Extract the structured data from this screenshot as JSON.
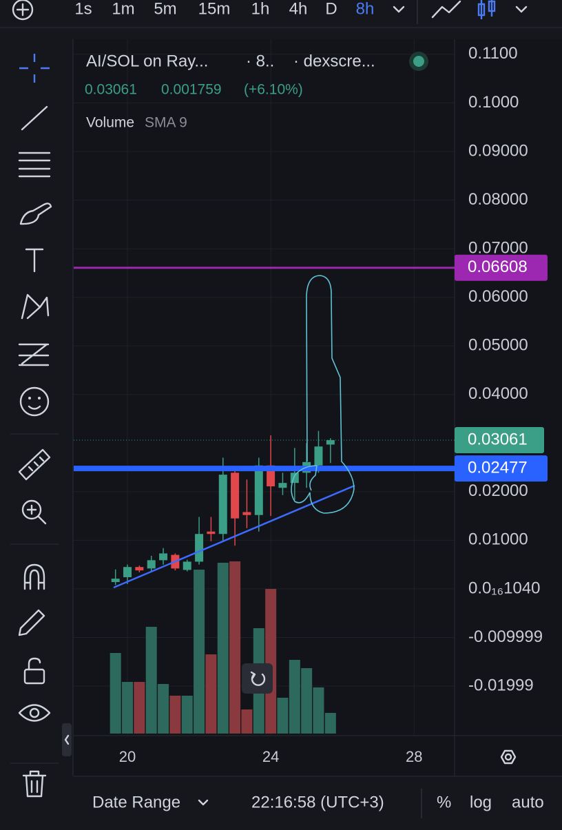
{
  "toolbar": {
    "timeframes": [
      "1s",
      "1m",
      "5m",
      "15m",
      "1h",
      "4h",
      "D",
      "8h"
    ],
    "active": 7
  },
  "legend": {
    "symbol": "AI/SOL on Ray...",
    "interval": "· 8..",
    "source": "· dexscre...",
    "change": 0.001759,
    "change_pct": "(+6.10%)",
    "indicator": "Volume",
    "indicator_param": "SMA 9"
  },
  "chart_data": {
    "type": "candlestick",
    "x": [
      19.667,
      20,
      20.333,
      20.667,
      21,
      21.333,
      21.667,
      22,
      22.333,
      22.667,
      23,
      23.333,
      23.667,
      24,
      24.333,
      24.667,
      25,
      25.333,
      25.667
    ],
    "open": [
      0.0014,
      0.0024,
      0.0045,
      0.0042,
      0.0059,
      0.007,
      0.0039,
      0.0056,
      0.0118,
      0.0113,
      0.0239,
      0.0158,
      0.0152,
      0.0254,
      0.0208,
      0.0218,
      0.0239,
      0.0254,
      0.0297
    ],
    "high": [
      0.004,
      0.005,
      0.0048,
      0.0068,
      0.0084,
      0.0073,
      0.006,
      0.0148,
      0.0148,
      0.027,
      0.0245,
      0.0225,
      0.027,
      0.0316,
      0.0239,
      0.029,
      0.03,
      0.0325,
      0.031
    ],
    "low": [
      0.0008,
      0.001,
      0.0034,
      0.0036,
      0.005,
      0.0038,
      0.0036,
      0.005,
      0.0098,
      0.01,
      0.0089,
      0.0125,
      0.0118,
      0.015,
      0.0193,
      0.0183,
      0.0208,
      0.0239,
      0.0259
    ],
    "close": [
      0.0021,
      0.0045,
      0.0038,
      0.0059,
      0.0073,
      0.0042,
      0.0056,
      0.0113,
      0.0113,
      0.0235,
      0.0145,
      0.0152,
      0.0254,
      0.0211,
      0.0218,
      0.0239,
      0.0261,
      0.0293,
      0.03061
    ],
    "volume": [
      117,
      75,
      75,
      155,
      72,
      55,
      55,
      238,
      115,
      248,
      250,
      35,
      153,
      210,
      52,
      107,
      95,
      67,
      30
    ],
    "up_color": "#3a9f86",
    "down_color": "#e2474c",
    "volume_up_color": "#2d6a5d",
    "volume_down_color": "#8a3a3f",
    "xlim": [
      18.5,
      29.13
    ],
    "ylim": [
      -0.0302,
      0.1131
    ],
    "xticks": [
      20,
      24,
      28
    ],
    "yticks": [
      {
        "value": 0.11,
        "label": "0.1100"
      },
      {
        "value": 0.1,
        "label": "0.1000"
      },
      {
        "value": 0.09,
        "label": "0.09000"
      },
      {
        "value": 0.08,
        "label": "0.08000"
      },
      {
        "value": 0.07,
        "label": "0.07000"
      },
      {
        "value": 0.06,
        "label": "0.06000"
      },
      {
        "value": 0.05,
        "label": "0.05000"
      },
      {
        "value": 0.04,
        "label": "0.04000"
      },
      {
        "value": 0.02,
        "label": "0.02000"
      },
      {
        "value": 0.01,
        "label": "0.01000"
      },
      {
        "value": 1.04e-17,
        "label": "0.0₁₆1040"
      },
      {
        "value": -0.009999,
        "label": "-0.009999"
      },
      {
        "value": -0.01999,
        "label": "-0.01999"
      }
    ],
    "grid": true,
    "last_price": 0.03061,
    "price_lines": [
      {
        "value": 0.06608,
        "color": "#9c27b0"
      },
      {
        "value": 0.02477,
        "color": "#2962ff"
      }
    ]
  },
  "footer": {
    "date_range": "Date Range",
    "time": "22:16:58 (UTC+3)",
    "percent": "%",
    "log": "log",
    "auto": "auto"
  }
}
